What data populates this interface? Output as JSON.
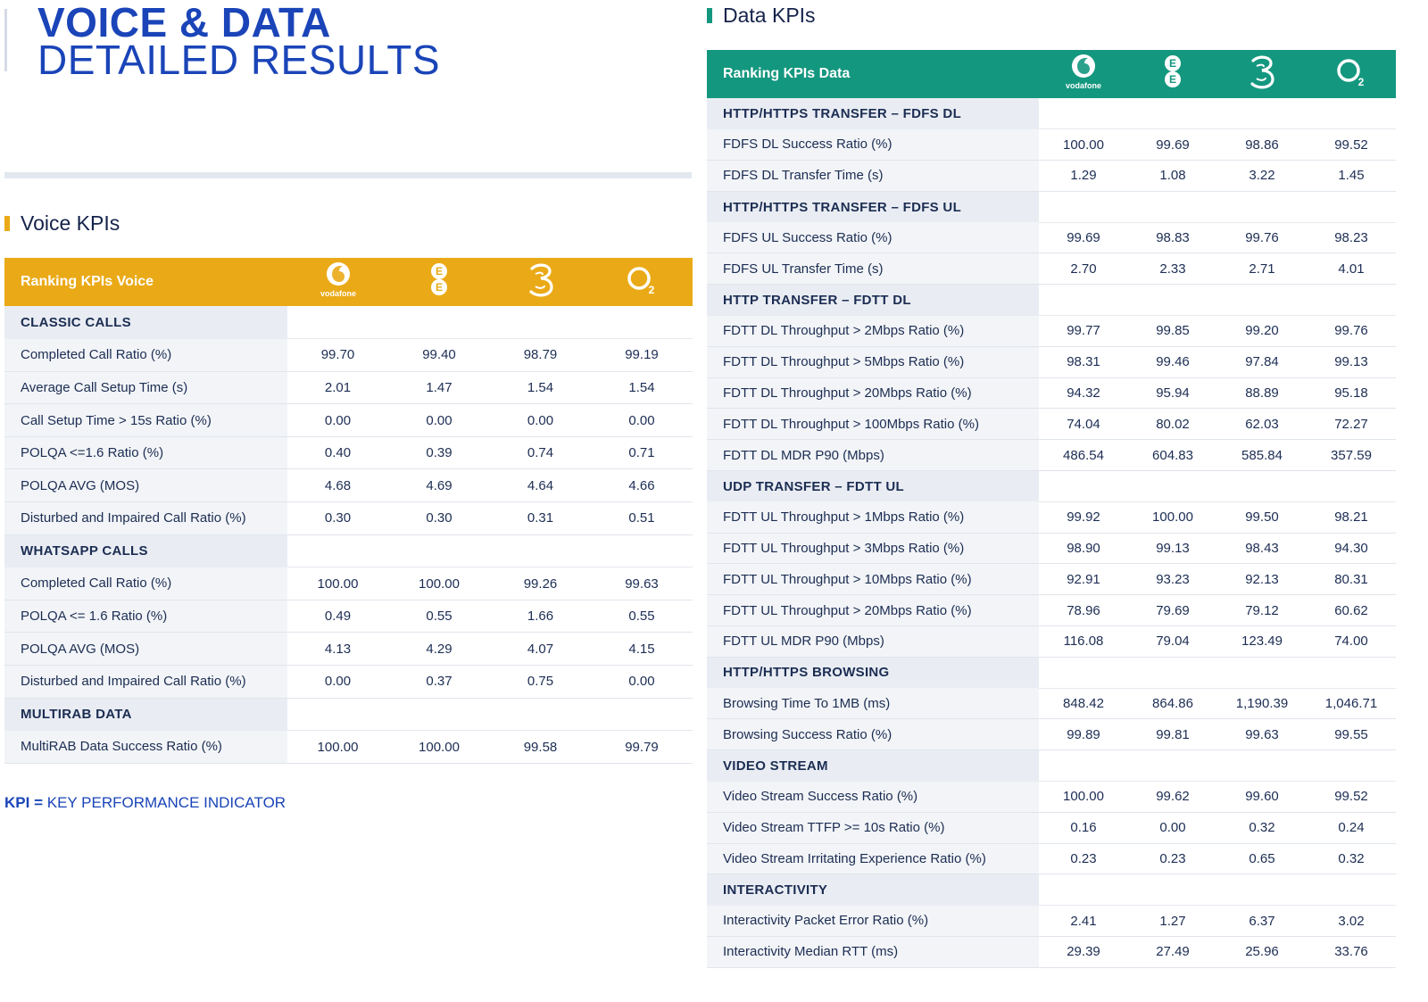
{
  "title": {
    "line1": "VOICE & DATA",
    "line2": "DETAILED RESULTS"
  },
  "colors": {
    "brand_blue": "#1a44b8",
    "voice_accent": "#eaaa17",
    "data_accent": "#14977f"
  },
  "operators": [
    "vodafone",
    "ee",
    "three",
    "o2"
  ],
  "voice": {
    "heading": "Voice KPIs",
    "header_label": "Ranking KPIs Voice",
    "sections": [
      {
        "name": "CLASSIC CALLS",
        "rows": [
          {
            "label": "Completed Call Ratio (%)",
            "values": [
              "99.70",
              "99.40",
              "98.79",
              "99.19"
            ]
          },
          {
            "label": "Average Call Setup Time (s)",
            "values": [
              "2.01",
              "1.47",
              "1.54",
              "1.54"
            ]
          },
          {
            "label": "Call Setup Time > 15s Ratio (%)",
            "values": [
              "0.00",
              "0.00",
              "0.00",
              "0.00"
            ]
          },
          {
            "label": "POLQA <=1.6 Ratio (%)",
            "values": [
              "0.40",
              "0.39",
              "0.74",
              "0.71"
            ]
          },
          {
            "label": "POLQA AVG (MOS)",
            "values": [
              "4.68",
              "4.69",
              "4.64",
              "4.66"
            ]
          },
          {
            "label": "Disturbed and Impaired Call Ratio (%)",
            "values": [
              "0.30",
              "0.30",
              "0.31",
              "0.51"
            ]
          }
        ]
      },
      {
        "name": "WHATSAPP CALLS",
        "rows": [
          {
            "label": "Completed Call Ratio (%)",
            "values": [
              "100.00",
              "100.00",
              "99.26",
              "99.63"
            ]
          },
          {
            "label": "POLQA <= 1.6 Ratio (%)",
            "values": [
              "0.49",
              "0.55",
              "1.66",
              "0.55"
            ]
          },
          {
            "label": "POLQA AVG (MOS)",
            "values": [
              "4.13",
              "4.29",
              "4.07",
              "4.15"
            ]
          },
          {
            "label": "Disturbed and Impaired Call Ratio (%)",
            "values": [
              "0.00",
              "0.37",
              "0.75",
              "0.00"
            ]
          }
        ]
      },
      {
        "name": "MULTIRAB DATA",
        "rows": [
          {
            "label": "MultiRAB Data Success Ratio (%)",
            "values": [
              "100.00",
              "100.00",
              "99.58",
              "99.79"
            ]
          }
        ]
      }
    ]
  },
  "data": {
    "heading": "Data KPIs",
    "header_label": "Ranking KPIs Data",
    "sections": [
      {
        "name": "HTTP/HTTPS TRANSFER – FDFS DL",
        "rows": [
          {
            "label": "FDFS DL Success Ratio (%)",
            "values": [
              "100.00",
              "99.69",
              "98.86",
              "99.52"
            ]
          },
          {
            "label": "FDFS DL Transfer Time (s)",
            "values": [
              "1.29",
              "1.08",
              "3.22",
              "1.45"
            ]
          }
        ]
      },
      {
        "name": "HTTP/HTTPS TRANSFER – FDFS UL",
        "rows": [
          {
            "label": "FDFS UL Success Ratio (%)",
            "values": [
              "99.69",
              "98.83",
              "99.76",
              "98.23"
            ]
          },
          {
            "label": "FDFS UL Transfer Time (s)",
            "values": [
              "2.70",
              "2.33",
              "2.71",
              "4.01"
            ]
          }
        ]
      },
      {
        "name": "HTTP TRANSFER – FDTT DL",
        "rows": [
          {
            "label": "FDTT DL Throughput > 2Mbps Ratio (%)",
            "values": [
              "99.77",
              "99.85",
              "99.20",
              "99.76"
            ]
          },
          {
            "label": "FDTT DL Throughput > 5Mbps Ratio (%)",
            "values": [
              "98.31",
              "99.46",
              "97.84",
              "99.13"
            ]
          },
          {
            "label": "FDTT DL Throughput > 20Mbps Ratio (%)",
            "values": [
              "94.32",
              "95.94",
              "88.89",
              "95.18"
            ]
          },
          {
            "label": "FDTT DL Throughput > 100Mbps Ratio (%)",
            "values": [
              "74.04",
              "80.02",
              "62.03",
              "72.27"
            ]
          },
          {
            "label": "FDTT DL MDR P90 (Mbps)",
            "values": [
              "486.54",
              "604.83",
              "585.84",
              "357.59"
            ]
          }
        ]
      },
      {
        "name": "UDP TRANSFER – FDTT UL",
        "rows": [
          {
            "label": "FDTT UL Throughput > 1Mbps Ratio (%)",
            "values": [
              "99.92",
              "100.00",
              "99.50",
              "98.21"
            ]
          },
          {
            "label": "FDTT UL Throughput > 3Mbps Ratio (%)",
            "values": [
              "98.90",
              "99.13",
              "98.43",
              "94.30"
            ]
          },
          {
            "label": "FDTT UL Throughput > 10Mbps Ratio (%)",
            "values": [
              "92.91",
              "93.23",
              "92.13",
              "80.31"
            ]
          },
          {
            "label": "FDTT UL Throughput > 20Mbps Ratio (%)",
            "values": [
              "78.96",
              "79.69",
              "79.12",
              "60.62"
            ]
          },
          {
            "label": "FDTT UL MDR P90 (Mbps)",
            "values": [
              "116.08",
              "79.04",
              "123.49",
              "74.00"
            ]
          }
        ]
      },
      {
        "name": "HTTP/HTTPS BROWSING",
        "rows": [
          {
            "label": "Browsing Time To 1MB (ms)",
            "values": [
              "848.42",
              "864.86",
              "1,190.39",
              "1,046.71"
            ]
          },
          {
            "label": "Browsing Success Ratio (%)",
            "values": [
              "99.89",
              "99.81",
              "99.63",
              "99.55"
            ]
          }
        ]
      },
      {
        "name": "VIDEO STREAM",
        "rows": [
          {
            "label": "Video Stream Success Ratio (%)",
            "values": [
              "100.00",
              "99.62",
              "99.60",
              "99.52"
            ]
          },
          {
            "label": "Video Stream TTFP >= 10s Ratio (%)",
            "values": [
              "0.16",
              "0.00",
              "0.32",
              "0.24"
            ]
          },
          {
            "label": "Video Stream Irritating Experience Ratio (%)",
            "values": [
              "0.23",
              "0.23",
              "0.65",
              "0.32"
            ]
          }
        ]
      },
      {
        "name": "INTERACTIVITY",
        "rows": [
          {
            "label": "Interactivity Packet Error Ratio (%)",
            "values": [
              "2.41",
              "1.27",
              "6.37",
              "3.02"
            ]
          },
          {
            "label": "Interactivity Median RTT (ms)",
            "values": [
              "29.39",
              "27.49",
              "25.96",
              "33.76"
            ]
          }
        ]
      }
    ]
  },
  "footnote": {
    "abbr": "KPI",
    "eq": "=",
    "text": "KEY PERFORMANCE INDICATOR"
  }
}
